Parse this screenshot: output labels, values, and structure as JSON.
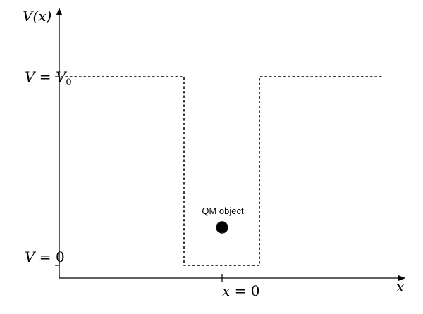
{
  "axes": {
    "y_label": "V(x)",
    "x_label": "x"
  },
  "levels": {
    "top": {
      "lhs": "V",
      "eq": " = ",
      "rhs": "V",
      "sub": "0"
    },
    "bottom": {
      "lhs": "V",
      "eq": " = ",
      "rhs": "0"
    }
  },
  "center_tick": {
    "lhs": "x",
    "eq": " = ",
    "rhs": "0"
  },
  "particle": {
    "label": "QM object",
    "color": "#000000"
  }
}
